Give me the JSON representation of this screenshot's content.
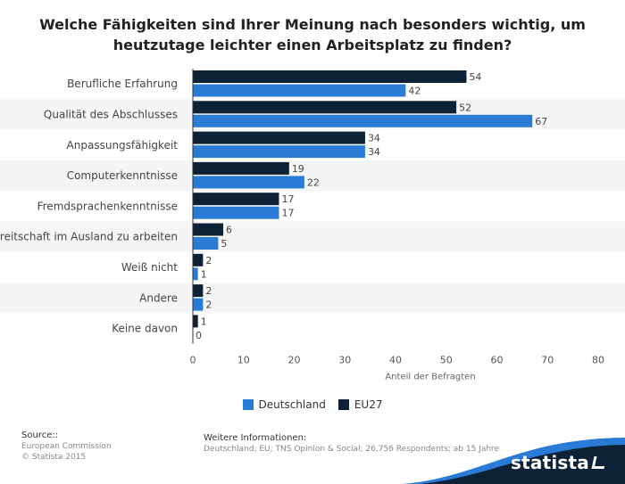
{
  "header": {
    "title": "Welche Fähigkeiten sind Ihrer Meinung nach besonders wichtig, um heutzutage leichter einen Arbeitsplatz zu finden?"
  },
  "chart_data": {
    "type": "bar",
    "orientation": "horizontal",
    "title": "Welche Fähigkeiten sind Ihrer Meinung nach besonders wichtig, um heutzutage leichter einen Arbeitsplatz zu finden?",
    "xlabel": "Anteil der Befragten",
    "ylabel": "",
    "xlim": [
      0,
      80
    ],
    "xticks": [
      0,
      10,
      20,
      30,
      40,
      50,
      60,
      70,
      80
    ],
    "grid": false,
    "legend_position": "bottom-center",
    "categories": [
      "Berufliche Erfahrung",
      "Qualität des Abschlusses",
      "Anpassungsfähigkeit",
      "Computerkenntnisse",
      "Fremdsprachenkenntnisse",
      "Bereitschaft im Ausland zu arbeiten",
      "Weiß nicht",
      "Andere",
      "Keine davon"
    ],
    "series": [
      {
        "name": "EU27",
        "color": "#0d2137",
        "values": [
          54,
          52,
          34,
          19,
          17,
          6,
          2,
          2,
          1
        ]
      },
      {
        "name": "Deutschland",
        "color": "#2a7bd6",
        "values": [
          42,
          67,
          34,
          22,
          17,
          5,
          1,
          2,
          0
        ]
      }
    ],
    "legend_order": [
      "Deutschland",
      "EU27"
    ]
  },
  "footer": {
    "source_heading": "Source::",
    "source_lines": [
      "European Commission",
      "© Statista 2015"
    ],
    "info_heading": "Weitere Informationen:",
    "info_text": "Deutschland; EU; TNS Opinion & Social; 26.756 Respondents; ab 15 Jahre",
    "brand": "statista",
    "brand_color": "#0d2137",
    "wave_color": "#2a7bd6"
  }
}
